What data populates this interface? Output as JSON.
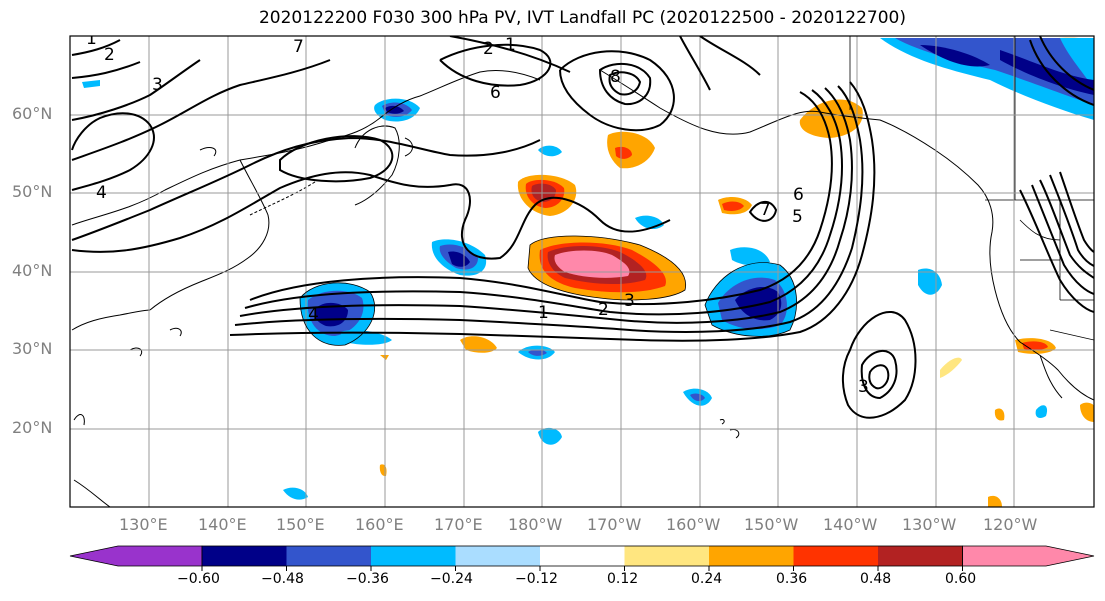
{
  "title": "2020122200 F030 300 hPa PV, IVT Landfall PC (2020122500 - 2020122700)",
  "lat_labels": [
    "60°N",
    "50°N",
    "40°N",
    "30°N",
    "20°N"
  ],
  "lon_labels": [
    "130°E",
    "140°E",
    "150°E",
    "160°E",
    "170°E",
    "180°W",
    "170°W",
    "160°W",
    "150°W",
    "140°W",
    "130°W",
    "120°W"
  ],
  "contour_labels": [
    "1",
    "2",
    "3",
    "4",
    "5",
    "6",
    "7",
    "8",
    "1",
    "2",
    "3",
    "4",
    "6",
    "7",
    "1",
    "2",
    "3"
  ],
  "colorbar": {
    "ticks": [
      "−0.60",
      "−0.48",
      "−0.36",
      "−0.24",
      "−0.12",
      "0.12",
      "0.24",
      "0.36",
      "0.48",
      "0.60"
    ],
    "colors": [
      "#9933cc",
      "#000088",
      "#3355cc",
      "#00bbff",
      "#aaddff",
      "#ffffff",
      "#ffe680",
      "#ffa500",
      "#ff3300",
      "#b22222",
      "#ff88aa"
    ]
  },
  "colors": {
    "negative_strong": "#000088",
    "negative_mid": "#3355cc",
    "negative_light": "#00bbff",
    "positive_light": "#ffa500",
    "positive_mid": "#ff3300",
    "positive_strong": "#b22222",
    "positive_max": "#ff88aa",
    "grid": "#999999",
    "contour": "#000000"
  }
}
